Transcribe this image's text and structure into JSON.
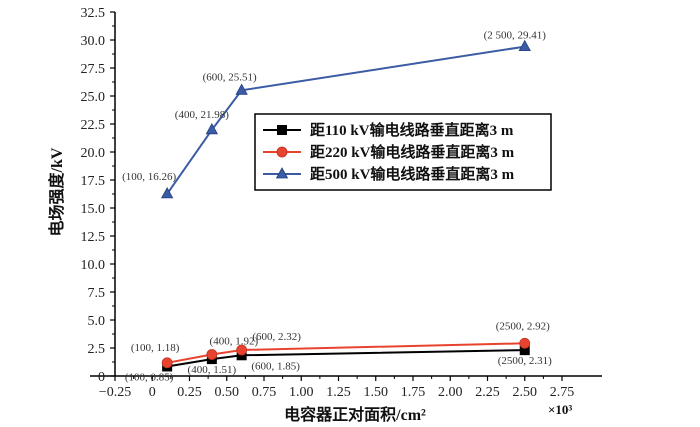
{
  "chart_data": {
    "type": "line",
    "xlabel": "电容器正对面积/cm²",
    "ylabel": "电场强度/kV",
    "x_scale_label": "×10³",
    "xlim": [
      -0.25,
      2.75
    ],
    "ylim": [
      0,
      32.5
    ],
    "x_ticks": [
      "−0.25",
      "0",
      "0.25",
      "0.50",
      "0.75",
      "1.00",
      "1.25",
      "1.50",
      "1.75",
      "2.00",
      "2.25",
      "2.50",
      "2.75"
    ],
    "y_ticks": [
      "0",
      "2.5",
      "5.0",
      "7.5",
      "10.0",
      "12.5",
      "15.0",
      "17.5",
      "20.0",
      "22.5",
      "25.0",
      "27.5",
      "30.0",
      "32.5"
    ],
    "legend_position": "upper-right",
    "series": [
      {
        "name": "距110 kV输电线路垂直距离3 m",
        "color": "#000000",
        "marker": "square",
        "x": [
          0.1,
          0.4,
          0.6,
          2.5
        ],
        "y": [
          0.85,
          1.51,
          1.85,
          2.31
        ],
        "labels": [
          "(100, 0.85)",
          "(400, 1.51)",
          "(600, 1.85)",
          "(2500, 2.31)"
        ]
      },
      {
        "name": "距220 kV输电线路垂直距离3 m",
        "color": "#e8432e",
        "marker": "circle",
        "x": [
          0.1,
          0.4,
          0.6,
          2.5
        ],
        "y": [
          1.18,
          1.92,
          2.32,
          2.92
        ],
        "labels": [
          "(100, 1.18)",
          "(400, 1.92)",
          "(600, 2.32)",
          "(2500, 2.92)"
        ]
      },
      {
        "name": "距500 kV输电线路垂直距离3 m",
        "color": "#3b5ba5",
        "marker": "triangle",
        "x": [
          0.1,
          0.4,
          0.6,
          2.5
        ],
        "y": [
          16.26,
          21.98,
          25.51,
          29.41
        ],
        "labels": [
          "(100, 16.26)",
          "(400, 21.98)",
          "(600, 25.51)",
          "(2 500, 29.41)"
        ]
      }
    ]
  }
}
